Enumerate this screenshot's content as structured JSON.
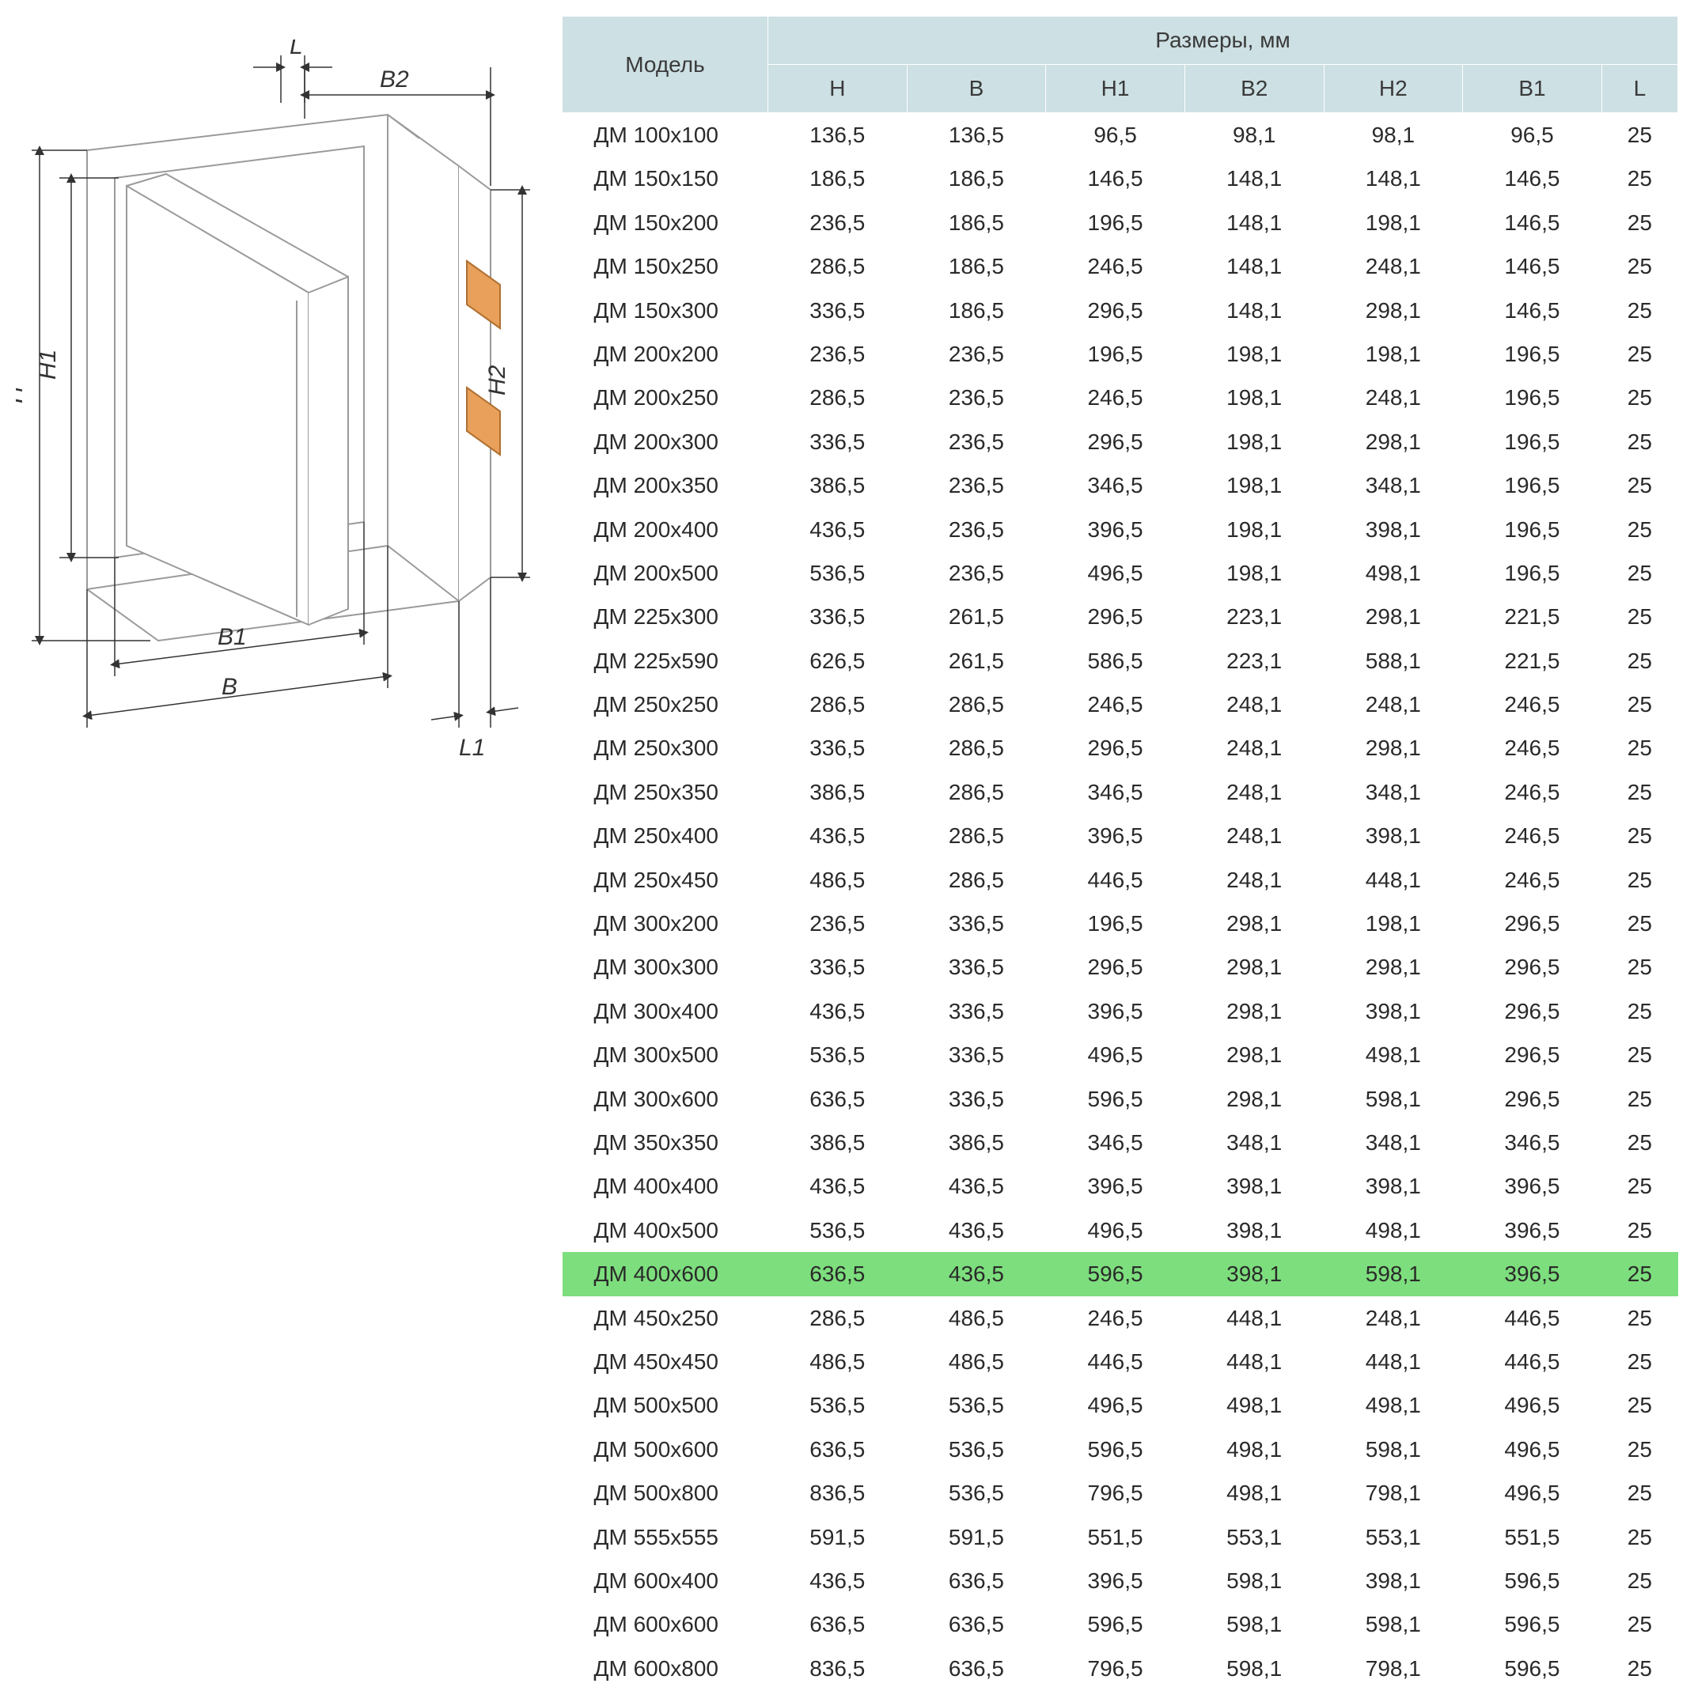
{
  "diagram": {
    "labels": {
      "L": "L",
      "B2": "B2",
      "H": "H",
      "H1": "H1",
      "H2": "H2",
      "B1": "B1",
      "B": "B",
      "L1": "L1"
    },
    "stroke_color": "#a0a0a0",
    "fill_color": "#ffffff",
    "clip_fill": "#e8a05a"
  },
  "table": {
    "header_bg": "#cde0e4",
    "highlight_bg": "#7dde7d",
    "model_header": "Модель",
    "dims_header": "Размеры, мм",
    "columns": [
      "Н",
      "В",
      "Н1",
      "В2",
      "Н2",
      "В1",
      "L"
    ],
    "highlight_index": 26,
    "rows": [
      {
        "model": "ДМ 100х100",
        "v": [
          "136,5",
          "136,5",
          "96,5",
          "98,1",
          "98,1",
          "96,5",
          "25"
        ]
      },
      {
        "model": "ДМ 150х150",
        "v": [
          "186,5",
          "186,5",
          "146,5",
          "148,1",
          "148,1",
          "146,5",
          "25"
        ]
      },
      {
        "model": "ДМ 150х200",
        "v": [
          "236,5",
          "186,5",
          "196,5",
          "148,1",
          "198,1",
          "146,5",
          "25"
        ]
      },
      {
        "model": "ДМ 150х250",
        "v": [
          "286,5",
          "186,5",
          "246,5",
          "148,1",
          "248,1",
          "146,5",
          "25"
        ]
      },
      {
        "model": "ДМ 150х300",
        "v": [
          "336,5",
          "186,5",
          "296,5",
          "148,1",
          "298,1",
          "146,5",
          "25"
        ]
      },
      {
        "model": "ДМ 200х200",
        "v": [
          "236,5",
          "236,5",
          "196,5",
          "198,1",
          "198,1",
          "196,5",
          "25"
        ]
      },
      {
        "model": "ДМ 200х250",
        "v": [
          "286,5",
          "236,5",
          "246,5",
          "198,1",
          "248,1",
          "196,5",
          "25"
        ]
      },
      {
        "model": "ДМ 200х300",
        "v": [
          "336,5",
          "236,5",
          "296,5",
          "198,1",
          "298,1",
          "196,5",
          "25"
        ]
      },
      {
        "model": "ДМ 200х350",
        "v": [
          "386,5",
          "236,5",
          "346,5",
          "198,1",
          "348,1",
          "196,5",
          "25"
        ]
      },
      {
        "model": "ДМ 200х400",
        "v": [
          "436,5",
          "236,5",
          "396,5",
          "198,1",
          "398,1",
          "196,5",
          "25"
        ]
      },
      {
        "model": "ДМ 200х500",
        "v": [
          "536,5",
          "236,5",
          "496,5",
          "198,1",
          "498,1",
          "196,5",
          "25"
        ]
      },
      {
        "model": "ДМ 225х300",
        "v": [
          "336,5",
          "261,5",
          "296,5",
          "223,1",
          "298,1",
          "221,5",
          "25"
        ]
      },
      {
        "model": "ДМ 225х590",
        "v": [
          "626,5",
          "261,5",
          "586,5",
          "223,1",
          "588,1",
          "221,5",
          "25"
        ]
      },
      {
        "model": "ДМ 250х250",
        "v": [
          "286,5",
          "286,5",
          "246,5",
          "248,1",
          "248,1",
          "246,5",
          "25"
        ]
      },
      {
        "model": "ДМ 250х300",
        "v": [
          "336,5",
          "286,5",
          "296,5",
          "248,1",
          "298,1",
          "246,5",
          "25"
        ]
      },
      {
        "model": "ДМ 250х350",
        "v": [
          "386,5",
          "286,5",
          "346,5",
          "248,1",
          "348,1",
          "246,5",
          "25"
        ]
      },
      {
        "model": "ДМ 250х400",
        "v": [
          "436,5",
          "286,5",
          "396,5",
          "248,1",
          "398,1",
          "246,5",
          "25"
        ]
      },
      {
        "model": "ДМ 250х450",
        "v": [
          "486,5",
          "286,5",
          "446,5",
          "248,1",
          "448,1",
          "246,5",
          "25"
        ]
      },
      {
        "model": "ДМ 300х200",
        "v": [
          "236,5",
          "336,5",
          "196,5",
          "298,1",
          "198,1",
          "296,5",
          "25"
        ]
      },
      {
        "model": "ДМ 300х300",
        "v": [
          "336,5",
          "336,5",
          "296,5",
          "298,1",
          "298,1",
          "296,5",
          "25"
        ]
      },
      {
        "model": "ДМ 300х400",
        "v": [
          "436,5",
          "336,5",
          "396,5",
          "298,1",
          "398,1",
          "296,5",
          "25"
        ]
      },
      {
        "model": "ДМ 300х500",
        "v": [
          "536,5",
          "336,5",
          "496,5",
          "298,1",
          "498,1",
          "296,5",
          "25"
        ]
      },
      {
        "model": "ДМ 300х600",
        "v": [
          "636,5",
          "336,5",
          "596,5",
          "298,1",
          "598,1",
          "296,5",
          "25"
        ]
      },
      {
        "model": "ДМ 350х350",
        "v": [
          "386,5",
          "386,5",
          "346,5",
          "348,1",
          "348,1",
          "346,5",
          "25"
        ]
      },
      {
        "model": "ДМ 400х400",
        "v": [
          "436,5",
          "436,5",
          "396,5",
          "398,1",
          "398,1",
          "396,5",
          "25"
        ]
      },
      {
        "model": "ДМ 400х500",
        "v": [
          "536,5",
          "436,5",
          "496,5",
          "398,1",
          "498,1",
          "396,5",
          "25"
        ]
      },
      {
        "model": "ДМ 400х600",
        "v": [
          "636,5",
          "436,5",
          "596,5",
          "398,1",
          "598,1",
          "396,5",
          "25"
        ]
      },
      {
        "model": "ДМ 450х250",
        "v": [
          "286,5",
          "486,5",
          "246,5",
          "448,1",
          "248,1",
          "446,5",
          "25"
        ]
      },
      {
        "model": "ДМ 450х450",
        "v": [
          "486,5",
          "486,5",
          "446,5",
          "448,1",
          "448,1",
          "446,5",
          "25"
        ]
      },
      {
        "model": "ДМ 500х500",
        "v": [
          "536,5",
          "536,5",
          "496,5",
          "498,1",
          "498,1",
          "496,5",
          "25"
        ]
      },
      {
        "model": "ДМ 500х600",
        "v": [
          "636,5",
          "536,5",
          "596,5",
          "498,1",
          "598,1",
          "496,5",
          "25"
        ]
      },
      {
        "model": "ДМ 500х800",
        "v": [
          "836,5",
          "536,5",
          "796,5",
          "498,1",
          "798,1",
          "496,5",
          "25"
        ]
      },
      {
        "model": "ДМ 555х555",
        "v": [
          "591,5",
          "591,5",
          "551,5",
          "553,1",
          "553,1",
          "551,5",
          "25"
        ]
      },
      {
        "model": "ДМ 600х400",
        "v": [
          "436,5",
          "636,5",
          "396,5",
          "598,1",
          "398,1",
          "596,5",
          "25"
        ]
      },
      {
        "model": "ДМ 600х600",
        "v": [
          "636,5",
          "636,5",
          "596,5",
          "598,1",
          "598,1",
          "596,5",
          "25"
        ]
      },
      {
        "model": "ДМ 600х800",
        "v": [
          "836,5",
          "636,5",
          "796,5",
          "598,1",
          "798,1",
          "596,5",
          "25"
        ]
      }
    ]
  }
}
